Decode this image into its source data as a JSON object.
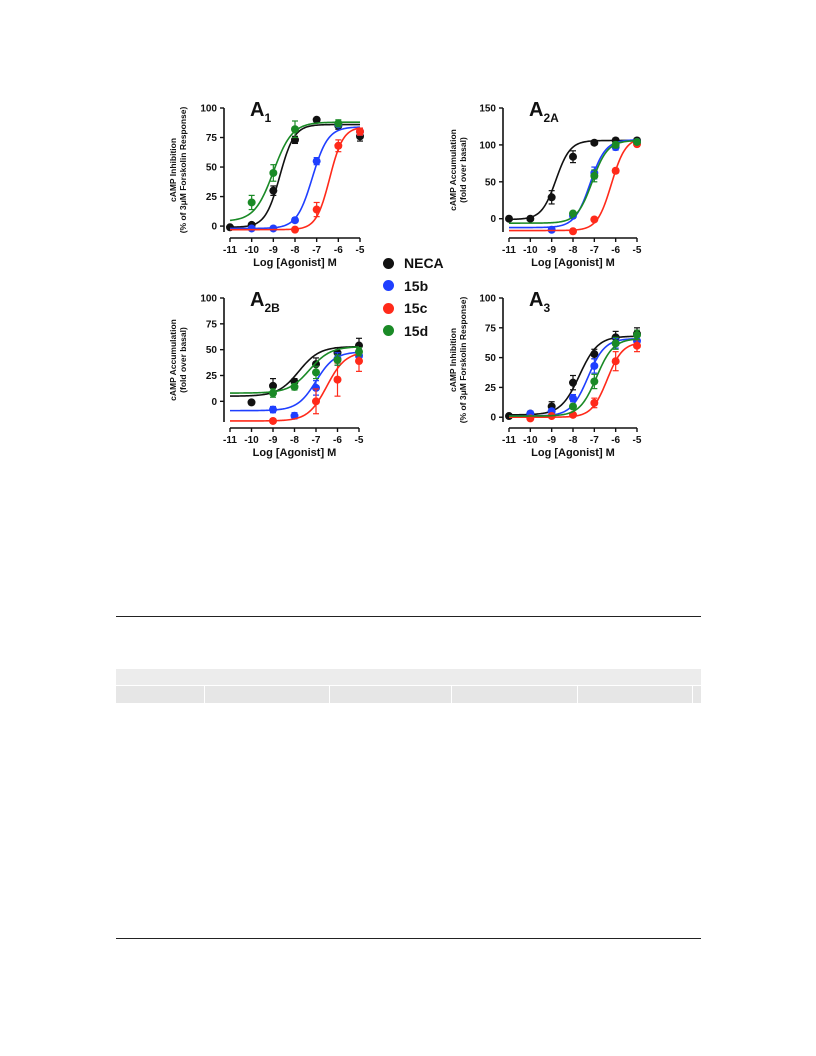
{
  "colors": {
    "NECA": "#111111",
    "15b": "#1f3fff",
    "15c": "#ff2a1a",
    "15d": "#1a8a26"
  },
  "legend": [
    {
      "name": "NECA",
      "color": "#111111"
    },
    {
      "name": "15b",
      "color": "#1f3fff"
    },
    {
      "name": "15c",
      "color": "#ff2a1a"
    },
    {
      "name": "15d",
      "color": "#1a8a26"
    }
  ],
  "chart_data": [
    {
      "type": "scatter",
      "panel": "A1",
      "title": "A",
      "title_sub": "1",
      "xlabel": "Log [Agonist] M",
      "ylabel_lines": [
        "cAMP Inhibition",
        "(% of 3μM Forskolin Response)"
      ],
      "xlim": [
        -11,
        -5
      ],
      "ylim": [
        -5,
        100
      ],
      "xticks": [
        -11,
        -10,
        -9,
        -8,
        -7,
        -6,
        -5
      ],
      "yticks": [
        0,
        25,
        50,
        75,
        100
      ],
      "series": [
        {
          "name": "NECA",
          "color": "#111111",
          "x": [
            -11,
            -10,
            -9,
            -8,
            -7,
            -6,
            -5
          ],
          "y": [
            -1,
            1,
            30,
            73,
            90,
            85,
            76
          ],
          "err": [
            1,
            2,
            4,
            3,
            2,
            3,
            4
          ],
          "fit": {
            "bottom": -1,
            "top": 86,
            "logEC50": -8.7,
            "hill": 1.3
          }
        },
        {
          "name": "15b",
          "color": "#1f3fff",
          "x": [
            -10,
            -9,
            -8,
            -7,
            -6,
            -5
          ],
          "y": [
            -2,
            -2,
            5,
            55,
            86,
            80
          ],
          "err": [
            1,
            1,
            2,
            3,
            2,
            3
          ],
          "fit": {
            "bottom": -2,
            "top": 84,
            "logEC50": -7.2,
            "hill": 1.2
          }
        },
        {
          "name": "15c",
          "color": "#ff2a1a",
          "x": [
            -8,
            -7,
            -6,
            -5
          ],
          "y": [
            -3,
            14,
            68,
            80
          ],
          "err": [
            1,
            6,
            5,
            3
          ],
          "fit": {
            "bottom": -3,
            "top": 84,
            "logEC50": -6.4,
            "hill": 1.4
          }
        },
        {
          "name": "15d",
          "color": "#1a8a26",
          "x": [
            -10,
            -9,
            -8,
            -6
          ],
          "y": [
            20,
            45,
            82,
            87
          ],
          "err": [
            6,
            7,
            7,
            3
          ],
          "fit": {
            "bottom": 4,
            "top": 88,
            "logEC50": -9.0,
            "hill": 1.0
          }
        }
      ]
    },
    {
      "type": "scatter",
      "panel": "A2A",
      "title": "A",
      "title_sub": "2A",
      "xlabel": "Log [Agonist] M",
      "ylabel_lines": [
        "cAMP Accumulation",
        "(fold over basal)"
      ],
      "xlim": [
        -11,
        -5
      ],
      "ylim": [
        -18,
        150
      ],
      "xticks": [
        -11,
        -10,
        -9,
        -8,
        -7,
        -6,
        -5
      ],
      "yticks": [
        0,
        50,
        100,
        150
      ],
      "series": [
        {
          "name": "NECA",
          "color": "#111111",
          "x": [
            -11,
            -10,
            -9,
            -8,
            -7,
            -6,
            -5
          ],
          "y": [
            0,
            0,
            29,
            84,
            103,
            106,
            106
          ],
          "err": [
            1,
            2,
            9,
            8,
            3,
            3,
            3
          ],
          "fit": {
            "bottom": -1,
            "top": 106,
            "logEC50": -8.8,
            "hill": 1.3
          }
        },
        {
          "name": "15b",
          "color": "#1f3fff",
          "x": [
            -9,
            -8,
            -7,
            -6,
            -5
          ],
          "y": [
            -15,
            4,
            62,
            97,
            104
          ],
          "err": [
            2,
            3,
            8,
            4,
            3
          ],
          "fit": {
            "bottom": -12,
            "top": 107,
            "logEC50": -7.2,
            "hill": 1.2
          }
        },
        {
          "name": "15c",
          "color": "#ff2a1a",
          "x": [
            -8,
            -7,
            -6,
            -5
          ],
          "y": [
            -17,
            -1,
            65,
            101
          ],
          "err": [
            1,
            2,
            3,
            3
          ],
          "fit": {
            "bottom": -16,
            "top": 110,
            "logEC50": -6.2,
            "hill": 1.3
          }
        },
        {
          "name": "15d",
          "color": "#1a8a26",
          "x": [
            -8,
            -7,
            -6,
            -5
          ],
          "y": [
            7,
            58,
            100,
            104
          ],
          "err": [
            3,
            8,
            4,
            3
          ],
          "fit": {
            "bottom": -6,
            "top": 106,
            "logEC50": -7.1,
            "hill": 1.2
          }
        }
      ]
    },
    {
      "type": "scatter",
      "panel": "A2B",
      "title": "A",
      "title_sub": "2B",
      "xlabel": "Log [Agonist] M",
      "ylabel_lines": [
        "cAMP Accumulation",
        "(fold over basal)"
      ],
      "xlim": [
        -11,
        -5
      ],
      "ylim": [
        -20,
        100
      ],
      "xticks": [
        -11,
        -10,
        -9,
        -8,
        -7,
        -6,
        -5
      ],
      "yticks": [
        0,
        25,
        50,
        75,
        100
      ],
      "series": [
        {
          "name": "NECA",
          "color": "#111111",
          "x": [
            -10,
            -9,
            -8,
            -7,
            -6,
            -5
          ],
          "y": [
            -1,
            15,
            19,
            36,
            47,
            54
          ],
          "err": [
            2,
            7,
            3,
            6,
            5,
            7
          ],
          "fit": {
            "bottom": 5,
            "top": 53,
            "logEC50": -7.8,
            "hill": 0.9
          }
        },
        {
          "name": "15b",
          "color": "#1f3fff",
          "x": [
            -9,
            -8,
            -7,
            -6,
            -5
          ],
          "y": [
            -8,
            -14,
            13,
            41,
            44
          ],
          "err": [
            3,
            3,
            7,
            6,
            5
          ],
          "fit": {
            "bottom": -9,
            "top": 48,
            "logEC50": -7.0,
            "hill": 1.0
          }
        },
        {
          "name": "15c",
          "color": "#ff2a1a",
          "x": [
            -9,
            -7,
            -6,
            -5
          ],
          "y": [
            -19,
            0,
            21,
            39
          ],
          "err": [
            2,
            12,
            16,
            10
          ],
          "fit": {
            "bottom": -19,
            "top": 48,
            "logEC50": -6.5,
            "hill": 1.0
          }
        },
        {
          "name": "15d",
          "color": "#1a8a26",
          "x": [
            -9,
            -8,
            -7,
            -6,
            -5
          ],
          "y": [
            8,
            14,
            28,
            40,
            48
          ],
          "err": [
            4,
            3,
            6,
            5,
            4
          ],
          "fit": {
            "bottom": 8,
            "top": 53,
            "logEC50": -7.3,
            "hill": 0.9
          }
        }
      ]
    },
    {
      "type": "scatter",
      "panel": "A3",
      "title": "A",
      "title_sub": "3",
      "xlabel": "Log [Agonist] M",
      "ylabel_lines": [
        "cAMP Inhibition",
        "(% of 3μM Forskolin Response)"
      ],
      "xlim": [
        -11,
        -5
      ],
      "ylim": [
        -4,
        100
      ],
      "xticks": [
        -11,
        -10,
        -9,
        -8,
        -7,
        -6,
        -5
      ],
      "yticks": [
        0,
        25,
        50,
        75,
        100
      ],
      "series": [
        {
          "name": "NECA",
          "color": "#111111",
          "x": [
            -11,
            -10,
            -9,
            -8,
            -7,
            -6,
            -5
          ],
          "y": [
            1,
            3,
            9,
            29,
            53,
            67,
            70
          ],
          "err": [
            1,
            2,
            4,
            6,
            4,
            5,
            5
          ],
          "fit": {
            "bottom": 2,
            "top": 68,
            "logEC50": -7.7,
            "hill": 1.0
          }
        },
        {
          "name": "15b",
          "color": "#1f3fff",
          "x": [
            -10,
            -9,
            -8,
            -7,
            -6,
            -5
          ],
          "y": [
            3,
            5,
            16,
            43,
            62,
            64
          ],
          "err": [
            2,
            2,
            3,
            6,
            4,
            4
          ],
          "fit": {
            "bottom": 1,
            "top": 66,
            "logEC50": -7.3,
            "hill": 1.1
          }
        },
        {
          "name": "15c",
          "color": "#ff2a1a",
          "x": [
            -10,
            -9,
            -8,
            -7,
            -6,
            -5
          ],
          "y": [
            -1,
            1,
            2,
            12,
            47,
            60
          ],
          "err": [
            1,
            1,
            1,
            4,
            8,
            5
          ],
          "fit": {
            "bottom": 0,
            "top": 63,
            "logEC50": -6.4,
            "hill": 1.2
          }
        },
        {
          "name": "15d",
          "color": "#1a8a26",
          "x": [
            -8,
            -7,
            -6,
            -5
          ],
          "y": [
            9,
            30,
            62,
            69
          ],
          "err": [
            2,
            6,
            5,
            4
          ],
          "fit": {
            "bottom": 1,
            "top": 66,
            "logEC50": -6.9,
            "hill": 1.1
          }
        }
      ]
    }
  ]
}
